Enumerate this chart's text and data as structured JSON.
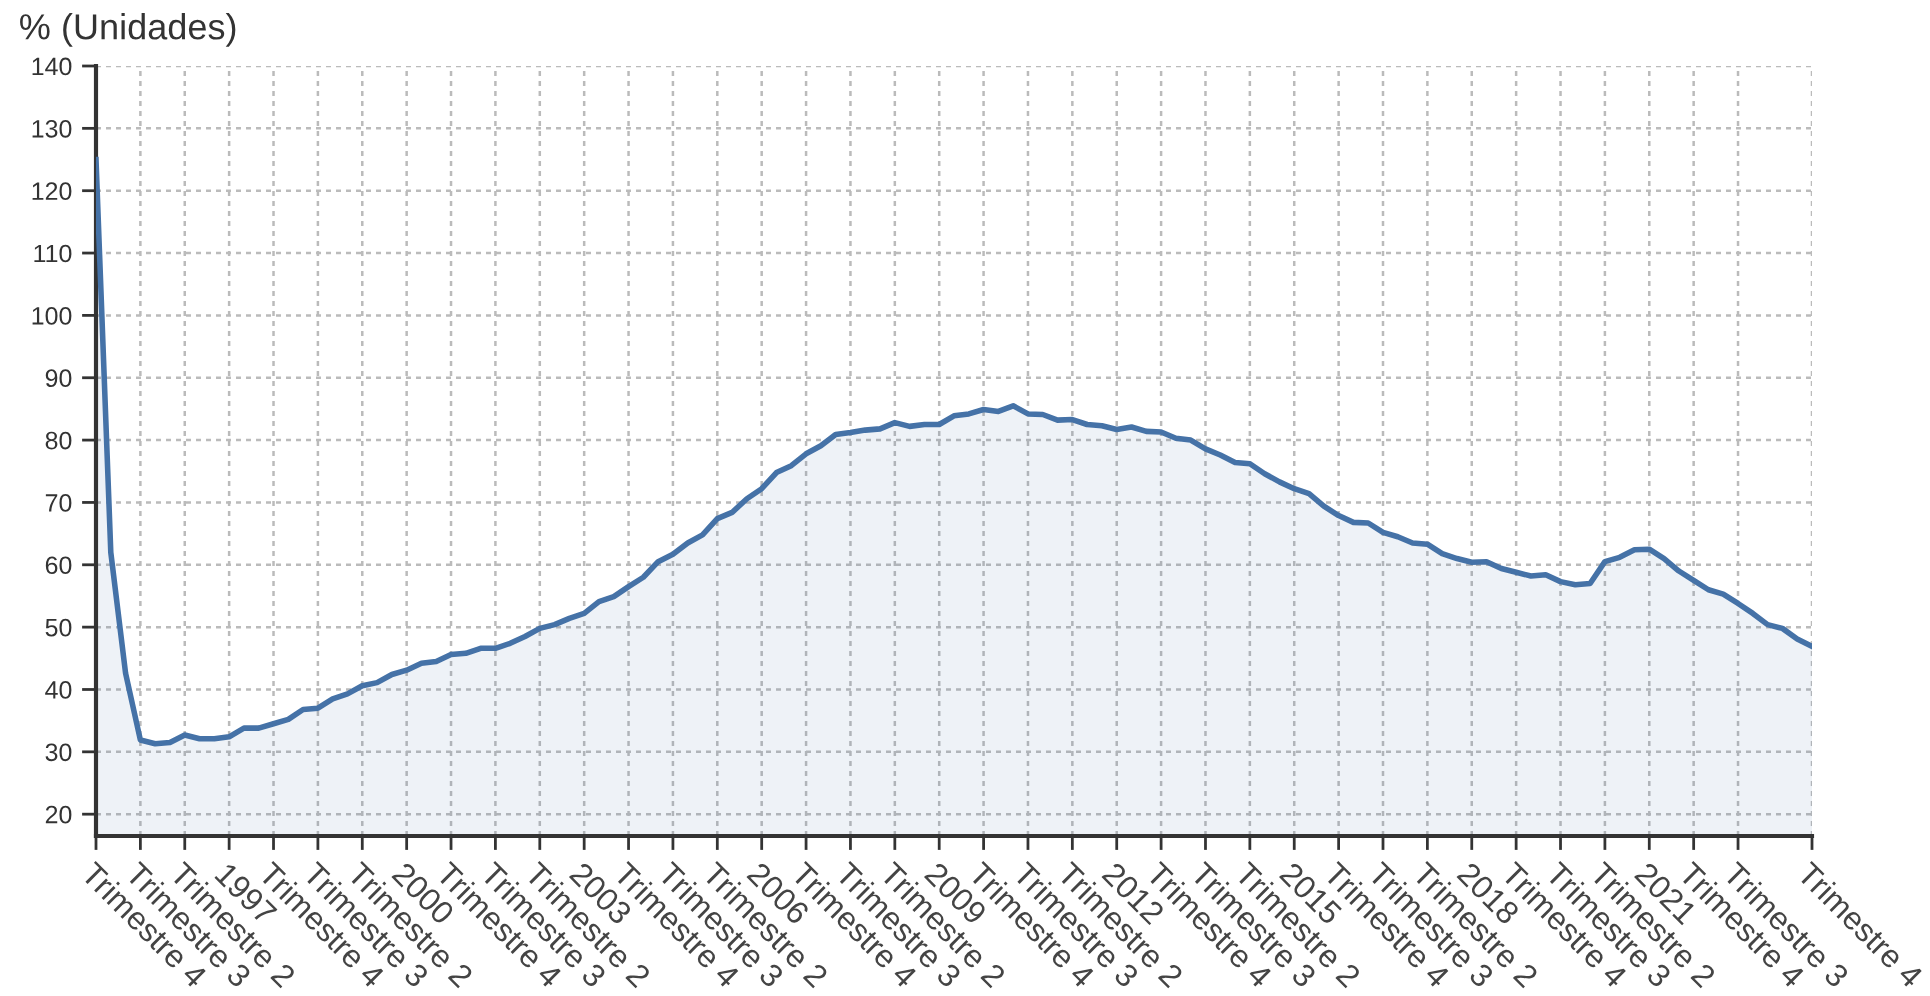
{
  "chart_data": {
    "type": "area",
    "ylabel": "% (Unidades)",
    "categories": [
      "Trimestre 4",
      null,
      null,
      "Trimestre 3",
      null,
      null,
      "Trimestre 2",
      null,
      null,
      "1997",
      null,
      null,
      "Trimestre 4",
      null,
      null,
      "Trimestre 3",
      null,
      null,
      "Trimestre 2",
      null,
      null,
      "2000",
      null,
      null,
      "Trimestre 4",
      null,
      null,
      "Trimestre 3",
      null,
      null,
      "Trimestre 2",
      null,
      null,
      "2003",
      null,
      null,
      "Trimestre 4",
      null,
      null,
      "Trimestre 3",
      null,
      null,
      "Trimestre 2",
      null,
      null,
      "2006",
      null,
      null,
      "Trimestre 4",
      null,
      null,
      "Trimestre 3",
      null,
      null,
      "Trimestre 2",
      null,
      null,
      "2009",
      null,
      null,
      "Trimestre 4",
      null,
      null,
      "Trimestre 3",
      null,
      null,
      "Trimestre 2",
      null,
      null,
      "2012",
      null,
      null,
      "Trimestre 4",
      null,
      null,
      "Trimestre 3",
      null,
      null,
      "Trimestre 2",
      null,
      null,
      "2015",
      null,
      null,
      "Trimestre 4",
      null,
      null,
      "Trimestre 3",
      null,
      null,
      "Trimestre 2",
      null,
      null,
      "2018",
      null,
      null,
      "Trimestre 4",
      null,
      null,
      "Trimestre 3",
      null,
      null,
      "Trimestre 2",
      null,
      null,
      "2021",
      null,
      null,
      "Trimestre 4",
      null,
      null,
      "Trimestre 3",
      null,
      null,
      null,
      null,
      "Trimestre 4"
    ],
    "series": [
      {
        "color": "#4572a7",
        "values": [
          125,
          62,
          42.6,
          31.9,
          31.3,
          31.5,
          32.7,
          32.1,
          32.1,
          32.4,
          33.8,
          33.8,
          34.5,
          35.2,
          36.8,
          37.0,
          38.5,
          39.3,
          40.6,
          41.1,
          42.4,
          43.1,
          44.2,
          44.5,
          45.6,
          45.8,
          46.6,
          46.6,
          47.4,
          48.5,
          49.8,
          50.4,
          51.4,
          52.2,
          54.1,
          54.9,
          56.5,
          58.0,
          60.5,
          61.7,
          63.5,
          64.8,
          67.4,
          68.4,
          70.6,
          72.2,
          74.8,
          75.9,
          77.8,
          79.1,
          80.9,
          81.2,
          81.6,
          81.8,
          82.8,
          82.2,
          82.5,
          82.5,
          83.9,
          84.2,
          84.9,
          84.6,
          85.5,
          84.2,
          84.1,
          83.2,
          83.3,
          82.5,
          82.3,
          81.7,
          82.1,
          81.4,
          81.3,
          80.3,
          80.0,
          78.6,
          77.6,
          76.4,
          76.2,
          74.6,
          73.3,
          72.2,
          71.4,
          69.4,
          67.9,
          66.8,
          66.7,
          65.2,
          64.5,
          63.5,
          63.3,
          61.8,
          61.0,
          60.4,
          60.5,
          59.4,
          58.8,
          58.2,
          58.4,
          57.3,
          56.8,
          57.0,
          60.5,
          61.2,
          62.4,
          62.5,
          61.0,
          59.0,
          57.5,
          56.0,
          55.3,
          53.8,
          52.2,
          50.4,
          49.8,
          48.1,
          46.9
        ]
      }
    ],
    "ylim": [
      16.5,
      140
    ],
    "yticks": [
      20,
      30,
      40,
      50,
      60,
      70,
      80,
      90,
      100,
      110,
      120,
      130,
      140
    ],
    "grid": true,
    "legend": false,
    "marker": "none",
    "line_style": "solid"
  }
}
